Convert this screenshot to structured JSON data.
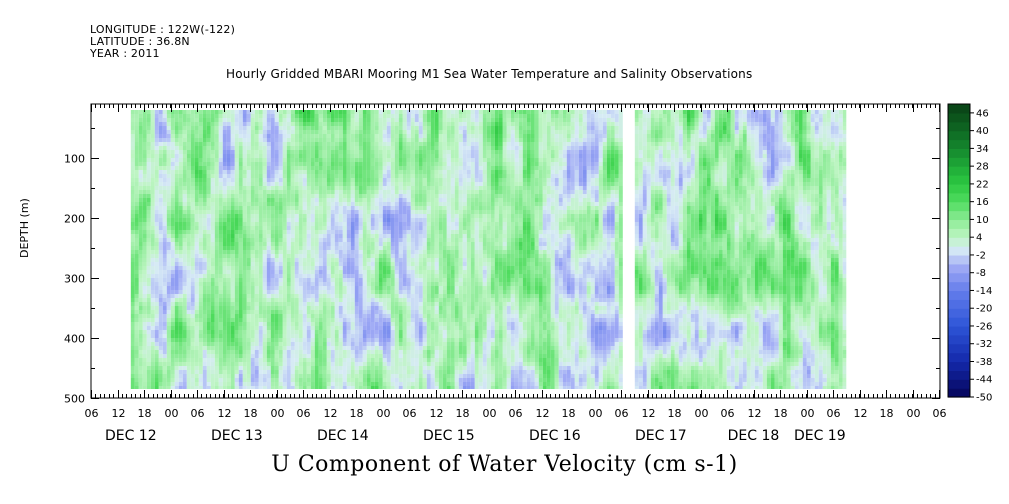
{
  "header": {
    "longitude": "LONGITUDE : 122W(-122)",
    "latitude": "LATITUDE : 36.8N",
    "year": "YEAR : 2011"
  },
  "chart_data": {
    "type": "heatmap",
    "title": "Hourly Gridded MBARI Mooring M1 Sea Water Temperature and Salinity Observations",
    "variable_title": "U Component of Water Velocity (cm s-1)",
    "ylabel": "DEPTH (m)",
    "y_ticks": [
      100,
      200,
      300,
      400,
      500
    ],
    "ylim": [
      500,
      10
    ],
    "y_inverted": true,
    "x_hour_ticks": [
      "06",
      "12",
      "18",
      "00",
      "06",
      "12",
      "18",
      "00",
      "06",
      "12",
      "18",
      "00",
      "06",
      "12",
      "18",
      "00",
      "06",
      "12",
      "18",
      "00",
      "06",
      "12",
      "18",
      "00",
      "06",
      "12",
      "18",
      "00",
      "06",
      "12",
      "18",
      "00",
      "06"
    ],
    "x_day_labels": [
      "DEC 12",
      "DEC 13",
      "DEC 14",
      "DEC 15",
      "DEC 16",
      "DEC 17",
      "DEC 18",
      "DEC 19"
    ],
    "x_range": [
      "2011-12-12 03:00",
      "2011-12-19 09:00"
    ],
    "data_x_range": [
      "2011-12-12 12:00",
      "2011-12-19 06:00"
    ],
    "data_depth_range": [
      20,
      485
    ],
    "data_gap": {
      "time": "2011-12-17 05:00",
      "depth_top": 20,
      "depth_bottom": 485
    },
    "colorbar": {
      "labels": [
        46,
        40,
        34,
        28,
        22,
        16,
        10,
        4,
        -2,
        -8,
        -14,
        -20,
        -26,
        -32,
        -38,
        -44,
        -50
      ],
      "range": [
        -50,
        50
      ],
      "levels": [
        -50,
        -47,
        -44,
        -41,
        -38,
        -35,
        -32,
        -29,
        -26,
        -23,
        -20,
        -17,
        -14,
        -11,
        -8,
        -5,
        -2,
        1,
        4,
        7,
        10,
        13,
        16,
        19,
        22,
        25,
        28,
        31,
        34,
        37,
        40,
        43,
        46,
        49
      ]
    },
    "dominant_range": [
      -16,
      24
    ],
    "colors": {
      "negative_deep": "#0a0a6a",
      "negative_mid": "#5a6fd8",
      "negative_light": "#aab4f0",
      "neutral": "#dff3e0",
      "positive_light": "#9ff0a8",
      "positive_mid": "#3ad84a",
      "positive_deep": "#0d4d18"
    }
  }
}
